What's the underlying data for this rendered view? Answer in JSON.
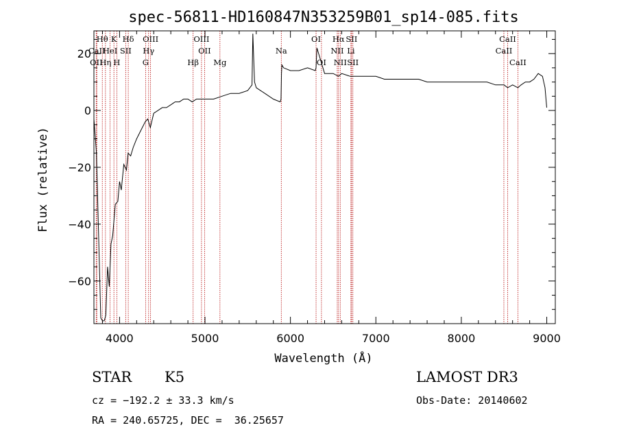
{
  "chart_data": {
    "type": "line",
    "title": "spec-56811-HD160847N353259B01_sp14-085.fits",
    "xlabel": "Wavelength (Å)",
    "ylabel": "Flux (relative)",
    "xlim": [
      3700,
      9100
    ],
    "ylim": [
      -75,
      28
    ],
    "xticks": [
      4000,
      5000,
      6000,
      7000,
      8000,
      9000
    ],
    "yticks": [
      -60,
      -40,
      -20,
      0,
      20
    ],
    "grid": false,
    "series": [
      {
        "name": "spectrum",
        "x": [
          3700,
          3730,
          3760,
          3780,
          3800,
          3820,
          3840,
          3860,
          3880,
          3900,
          3920,
          3950,
          3980,
          4000,
          4020,
          4050,
          4080,
          4100,
          4130,
          4160,
          4200,
          4250,
          4300,
          4330,
          4360,
          4400,
          4450,
          4500,
          4550,
          4600,
          4650,
          4700,
          4750,
          4800,
          4850,
          4900,
          5000,
          5100,
          5200,
          5300,
          5400,
          5500,
          5550,
          5560,
          5580,
          5600,
          5700,
          5800,
          5880,
          5890,
          5895,
          5900,
          5920,
          6000,
          6100,
          6200,
          6290,
          6300,
          6310,
          6400,
          6500,
          6563,
          6600,
          6700,
          6800,
          6900,
          7000,
          7100,
          7200,
          7300,
          7400,
          7500,
          7600,
          7700,
          7800,
          7900,
          8000,
          8100,
          8200,
          8300,
          8400,
          8500,
          8542,
          8600,
          8662,
          8700,
          8750,
          8800,
          8850,
          8900,
          8950,
          8980,
          9000
        ],
        "y": [
          -3,
          -15,
          -50,
          -73,
          -74,
          -74,
          -72,
          -55,
          -62,
          -47,
          -44,
          -33,
          -32,
          -25,
          -28,
          -19,
          -21,
          -15,
          -16,
          -13,
          -10,
          -7,
          -4,
          -3,
          -6,
          -1,
          0,
          1,
          1,
          2,
          3,
          3,
          4,
          4,
          3,
          4,
          4,
          4,
          5,
          6,
          6,
          7,
          9,
          27,
          10,
          8,
          6,
          4,
          3,
          4,
          13,
          16,
          15,
          14,
          14,
          15,
          14,
          15,
          22,
          13,
          13,
          12,
          13,
          12,
          12,
          12,
          12,
          11,
          11,
          11,
          11,
          11,
          10,
          10,
          10,
          10,
          10,
          10,
          10,
          10,
          9,
          9,
          8,
          9,
          8,
          9,
          10,
          10,
          11,
          13,
          12,
          8,
          1
        ]
      }
    ],
    "spectral_lines": [
      {
        "name": "Hθ",
        "x": 3798,
        "row": 0
      },
      {
        "name": "OII",
        "x": 3727,
        "row": 2
      },
      {
        "name": "CaII",
        "x": 3734,
        "row": 1
      },
      {
        "name": "HeI",
        "x": 3889,
        "row": 1
      },
      {
        "name": "Hη",
        "x": 3835,
        "row": 2
      },
      {
        "name": "K",
        "x": 3934,
        "row": 0
      },
      {
        "name": "SII",
        "x": 4072,
        "row": 1
      },
      {
        "name": "H",
        "x": 3968,
        "row": 2
      },
      {
        "name": "Hδ",
        "x": 4102,
        "row": 0
      },
      {
        "name": "OIII",
        "x": 4363,
        "row": 0
      },
      {
        "name": "Hγ",
        "x": 4340,
        "row": 1
      },
      {
        "name": "G",
        "x": 4305,
        "row": 2
      },
      {
        "name": "OIII",
        "x": 4959,
        "row": 0
      },
      {
        "name": "OII",
        "x": 4995,
        "row": 1
      },
      {
        "name": "Hβ",
        "x": 4861,
        "row": 2
      },
      {
        "name": "Mg",
        "x": 5175,
        "row": 2
      },
      {
        "name": "Na",
        "x": 5893,
        "row": 1
      },
      {
        "name": "OI",
        "x": 6300,
        "row": 0
      },
      {
        "name": "OI",
        "x": 6363,
        "row": 2
      },
      {
        "name": "Hα",
        "x": 6563,
        "row": 0
      },
      {
        "name": "SII",
        "x": 6716,
        "row": 0
      },
      {
        "name": "NII",
        "x": 6548,
        "row": 1
      },
      {
        "name": "Li",
        "x": 6708,
        "row": 1
      },
      {
        "name": "NII",
        "x": 6583,
        "row": 2
      },
      {
        "name": "SII",
        "x": 6731,
        "row": 2
      },
      {
        "name": "CaII",
        "x": 8542,
        "row": 0
      },
      {
        "name": "CaII",
        "x": 8498,
        "row": 1
      },
      {
        "name": "CaII",
        "x": 8662,
        "row": 2
      }
    ]
  },
  "info": {
    "class_label": "STAR",
    "subclass": "K5",
    "survey": "LAMOST DR3",
    "cz": "cz = −192.2 ± 33.3 km/s",
    "obs_date": "Obs-Date: 20140602",
    "coords": "RA = 240.65725, DEC =  36.25657"
  },
  "colors": {
    "line": "#000000",
    "marker": "#b40000",
    "background": "#ffffff"
  }
}
